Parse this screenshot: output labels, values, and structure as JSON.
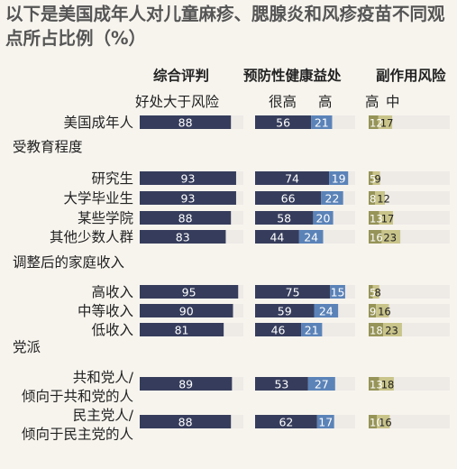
{
  "title": "以下是美国成年人对儿童麻疹、腮腺炎和风疹疫苗不同观点所占比例（%）",
  "headers": {
    "overall": "综合评判",
    "preventive": "预防性健康益处",
    "side_effects": "副作用风险"
  },
  "subheaders": {
    "overall": "好处大于风险",
    "very_high": "很高",
    "high": "高",
    "se_high": "高",
    "se_medium": "中"
  },
  "colors": {
    "navy": "#363d5c",
    "blue": "#5b83b8",
    "olive_dark": "#969458",
    "olive_light": "#c9c48a",
    "track": "#eeeae6"
  },
  "chart_data": {
    "type": "bar",
    "title": "以下是美国成年人对儿童麻疹、腮腺炎和风疹疫苗不同观点所占比例（%）",
    "columns": [
      "综合评判: 好处大于风险",
      "预防性健康益处: 很高",
      "预防性健康益处: 高",
      "副作用风险: 高",
      "副作用风险: 中"
    ],
    "groups": [
      {
        "name": "",
        "rows": [
          {
            "label": "美国成年人",
            "overall": 88,
            "very_high": 56,
            "high": 21,
            "se_high": 12,
            "se_medium": 17
          }
        ]
      },
      {
        "name": "受教育程度",
        "rows": [
          {
            "label": "研究生",
            "overall": 93,
            "very_high": 74,
            "high": 19,
            "se_high": 5,
            "se_medium": 9
          },
          {
            "label": "大学毕业生",
            "overall": 93,
            "very_high": 66,
            "high": 22,
            "se_high": 8,
            "se_medium": 12
          },
          {
            "label": "某些学院",
            "overall": 88,
            "very_high": 58,
            "high": 20,
            "se_high": 13,
            "se_medium": 17
          },
          {
            "label": "其他少数人群",
            "overall": 83,
            "very_high": 44,
            "high": 24,
            "se_high": 16,
            "se_medium": 23
          }
        ]
      },
      {
        "name": "调整后的家庭收入",
        "rows": [
          {
            "label": "高收入",
            "overall": 95,
            "very_high": 75,
            "high": 15,
            "se_high": 5,
            "se_medium": 8
          },
          {
            "label": "中等收入",
            "overall": 90,
            "very_high": 59,
            "high": 24,
            "se_high": 9,
            "se_medium": 16
          },
          {
            "label": "低收入",
            "overall": 81,
            "very_high": 46,
            "high": 21,
            "se_high": 18,
            "se_medium": 23
          }
        ]
      },
      {
        "name": "党派",
        "rows": [
          {
            "label": "共和党人/\n倾向于共和党的人",
            "overall": 89,
            "very_high": 53,
            "high": 27,
            "se_high": 13,
            "se_medium": 18
          },
          {
            "label": "民主党人/\n倾向于民主党的人",
            "overall": 88,
            "very_high": 62,
            "high": 17,
            "se_high": 10,
            "se_medium": 16
          }
        ]
      }
    ],
    "xlim": [
      0,
      100
    ]
  }
}
